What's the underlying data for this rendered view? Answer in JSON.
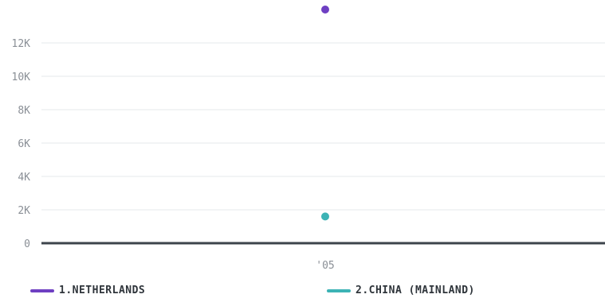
{
  "chart_data": {
    "type": "scatter",
    "categories": [
      "'05"
    ],
    "series": [
      {
        "name": "1.NETHERLANDS",
        "color": "#6e3fc2",
        "values": [
          14000
        ]
      },
      {
        "name": "2.CHINA (MAINLAND)",
        "color": "#3cb3b5",
        "values": [
          1600
        ]
      }
    ],
    "yticks": [
      {
        "value": 0,
        "label": "0"
      },
      {
        "value": 2000,
        "label": "2K"
      },
      {
        "value": 4000,
        "label": "4K"
      },
      {
        "value": 6000,
        "label": "6K"
      },
      {
        "value": 8000,
        "label": "8K"
      },
      {
        "value": 10000,
        "label": "10K"
      },
      {
        "value": 12000,
        "label": "12K"
      }
    ],
    "ylim": [
      0,
      14000
    ],
    "grid": true,
    "legend_position": "bottom",
    "title": "",
    "xlabel": "",
    "ylabel": ""
  }
}
